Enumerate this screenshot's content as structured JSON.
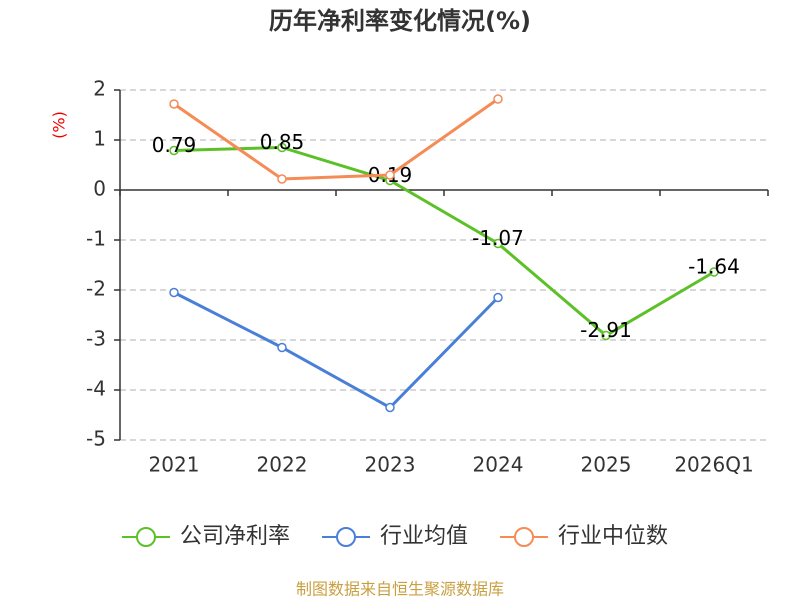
{
  "chart_data": {
    "type": "line",
    "title": "历年净利率变化情况(%)",
    "y_label": "(%)",
    "categories": [
      "2021",
      "2022",
      "2023",
      "2024",
      "2025",
      "2026Q1"
    ],
    "series": [
      {
        "name": "公司净利率",
        "color": "#5cc126",
        "values": [
          0.79,
          0.85,
          0.19,
          -1.07,
          -2.91,
          -1.64
        ],
        "labels": true
      },
      {
        "name": "行业均值",
        "color": "#4a7fd8",
        "values": [
          -2.05,
          -3.15,
          -4.35,
          -2.15,
          null,
          null
        ]
      },
      {
        "name": "行业中位数",
        "color": "#f58b55",
        "values": [
          1.72,
          0.22,
          0.3,
          1.82,
          null,
          null
        ]
      }
    ],
    "ylim": [
      -5,
      2
    ],
    "yticks": [
      -5,
      -4,
      -3,
      -2,
      -1,
      0,
      1,
      2
    ],
    "grid": true,
    "source": "制图数据来自恒生聚源数据库"
  }
}
